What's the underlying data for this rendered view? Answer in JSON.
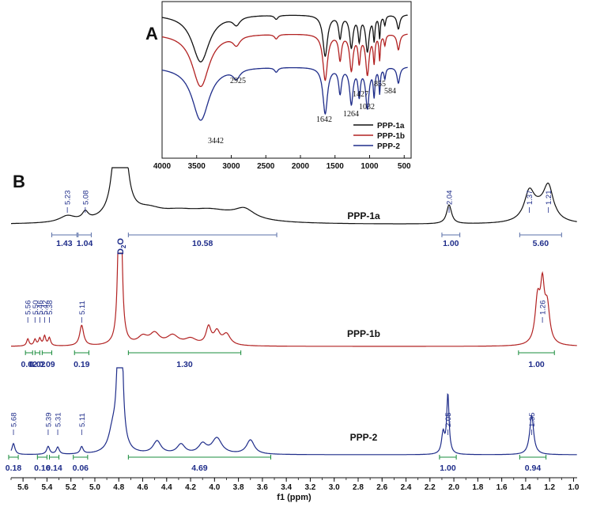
{
  "colors": {
    "black": "#111111",
    "red": "#b22222",
    "blue": "#1f2d8a",
    "integral": "#1a8c3c",
    "label_blue": "#1f2d8a"
  },
  "chart_data": [
    {
      "panel": "A",
      "type": "line",
      "xlim": [
        4000,
        400
      ],
      "x_ticks": [
        "4000",
        "3500",
        "3000",
        "2500",
        "2000",
        "1500",
        "1000",
        "500"
      ],
      "x_tick_values": [
        4000,
        3500,
        3000,
        2500,
        2000,
        1500,
        1000,
        500
      ],
      "series": [
        {
          "name": "PPP-1a",
          "color": "#111111"
        },
        {
          "name": "PPP-1b",
          "color": "#b22222"
        },
        {
          "name": "PPP-2",
          "color": "#1f2d8a"
        }
      ],
      "annotations": [
        {
          "text": "3442",
          "x": 3442
        },
        {
          "text": "2925",
          "x": 2925
        },
        {
          "text": "1642",
          "x": 1642
        },
        {
          "text": "1427",
          "x": 1427
        },
        {
          "text": "1264",
          "x": 1264
        },
        {
          "text": "1032",
          "x": 1032
        },
        {
          "text": "855",
          "x": 855
        },
        {
          "text": "584",
          "x": 584
        }
      ]
    },
    {
      "panel": "B",
      "type": "line",
      "xlabel": "f1 (ppm)",
      "xlim": [
        5.7,
        0.97
      ],
      "x_ticks": [
        "5.6",
        "5.4",
        "5.2",
        "5.0",
        "4.8",
        "4.6",
        "4.4",
        "4.2",
        "4.0",
        "3.8",
        "3.6",
        "3.4",
        "3.2",
        "3.0",
        "2.8",
        "2.6",
        "2.4",
        "2.2",
        "2.0",
        "1.8",
        "1.6",
        "1.4",
        "1.2",
        "1.0"
      ],
      "x_tick_values": [
        5.6,
        5.4,
        5.2,
        5.0,
        4.8,
        4.6,
        4.4,
        4.2,
        4.0,
        3.8,
        3.6,
        3.4,
        3.2,
        3.0,
        2.8,
        2.6,
        2.4,
        2.2,
        2.0,
        1.8,
        1.6,
        1.4,
        1.2,
        1.0
      ],
      "solvent_label": {
        "base": "D",
        "sub": "2",
        "tail": "O",
        "x": 4.79
      },
      "spectra": [
        {
          "name": "PPP-1a",
          "color": "#111111",
          "peak_labels": [
            {
              "text": "5.23",
              "x": 5.23
            },
            {
              "text": "5.08",
              "x": 5.08
            },
            {
              "text": "2.04",
              "x": 2.04
            },
            {
              "text": "1.37",
              "x": 1.37
            },
            {
              "text": "1.21",
              "x": 1.21
            }
          ],
          "integrals": [
            {
              "text": "1.43",
              "from": 5.36,
              "to": 5.15
            },
            {
              "text": "1.04",
              "from": 5.14,
              "to": 5.03
            },
            {
              "text": "10.58",
              "from": 4.72,
              "to": 3.48
            },
            {
              "text": "1.00",
              "from": 2.1,
              "to": 1.95
            },
            {
              "text": "5.60",
              "from": 1.45,
              "to": 1.1
            }
          ]
        },
        {
          "name": "PPP-1b",
          "color": "#b22222",
          "peak_labels": [
            {
              "text": "5.56",
              "x": 5.56
            },
            {
              "text": "5.50",
              "x": 5.5
            },
            {
              "text": "5.46",
              "x": 5.46
            },
            {
              "text": "5.42",
              "x": 5.42
            },
            {
              "text": "5.38",
              "x": 5.38
            },
            {
              "text": "5.11",
              "x": 5.11
            },
            {
              "text": "1.26",
              "x": 1.26
            }
          ],
          "integrals": [
            {
              "text": "0.02",
              "from": 5.58,
              "to": 5.52
            },
            {
              "text": "0.02",
              "from": 5.5,
              "to": 5.46
            },
            {
              "text": "0.09",
              "from": 5.44,
              "to": 5.36
            },
            {
              "text": "0.19",
              "from": 5.17,
              "to": 5.05
            },
            {
              "text": "1.30",
              "from": 4.72,
              "to": 3.78
            },
            {
              "text": "1.00",
              "from": 1.46,
              "to": 1.16
            }
          ]
        },
        {
          "name": "PPP-2",
          "color": "#1f2d8a",
          "peak_labels": [
            {
              "text": "5.68",
              "x": 5.68
            },
            {
              "text": "5.39",
              "x": 5.39
            },
            {
              "text": "5.31",
              "x": 5.31
            },
            {
              "text": "5.11",
              "x": 5.11
            },
            {
              "text": "2.05",
              "x": 2.05
            },
            {
              "text": "1.35",
              "x": 1.35
            }
          ],
          "integrals": [
            {
              "text": "0.18",
              "from": 5.72,
              "to": 5.64
            },
            {
              "text": "0.16",
              "from": 5.48,
              "to": 5.4
            },
            {
              "text": "0.14",
              "from": 5.38,
              "to": 5.3
            },
            {
              "text": "0.06",
              "from": 5.18,
              "to": 5.06
            },
            {
              "text": "4.69",
              "from": 4.72,
              "to": 3.53
            },
            {
              "text": "1.00",
              "from": 2.12,
              "to": 1.98
            },
            {
              "text": "0.94",
              "from": 1.45,
              "to": 1.23
            }
          ]
        }
      ]
    }
  ]
}
